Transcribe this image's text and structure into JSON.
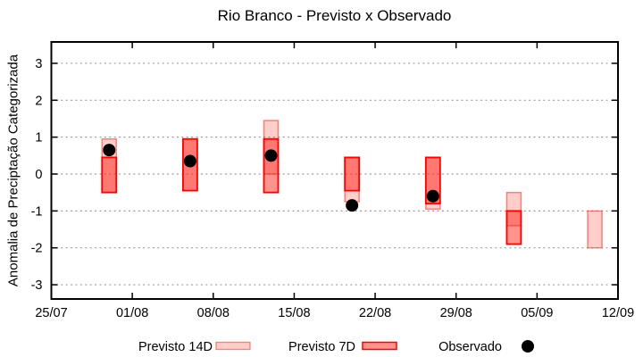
{
  "chart_data": {
    "type": "bar",
    "title": "Rio Branco - Previsto x Observado",
    "ylabel": "Anomalia de Preciptação Categorizada",
    "xlabel": "",
    "ylim": [
      -3.4,
      3.6
    ],
    "yticks": [
      3,
      2,
      1,
      0,
      -1,
      -2,
      -3
    ],
    "grid": "horizontal-dotted",
    "x_axis_days_range": [
      0,
      49
    ],
    "xticks": [
      {
        "day": 0,
        "label": "25/07"
      },
      {
        "day": 7,
        "label": "01/08"
      },
      {
        "day": 14,
        "label": "08/08"
      },
      {
        "day": 21,
        "label": "15/08"
      },
      {
        "day": 28,
        "label": "22/08"
      },
      {
        "day": 35,
        "label": "29/08"
      },
      {
        "day": 42,
        "label": "05/09"
      },
      {
        "day": 49,
        "label": "12/09"
      }
    ],
    "series": [
      {
        "name": "Previsto 14D",
        "type": "range-bar"
      },
      {
        "name": "Previsto 7D",
        "type": "range-bar"
      },
      {
        "name": "Observado",
        "type": "point"
      }
    ],
    "points": [
      {
        "date": "30/07",
        "day": 5,
        "previsto14d": [
          -0.5,
          0.95
        ],
        "previsto7d": [
          -0.5,
          0.45
        ],
        "observado": 0.65
      },
      {
        "date": "06/08",
        "day": 12,
        "previsto14d": [
          -0.45,
          0.95
        ],
        "previsto7d": [
          -0.45,
          0.95
        ],
        "observado": 0.35
      },
      {
        "date": "13/08",
        "day": 19,
        "previsto14d": [
          0.0,
          1.45
        ],
        "previsto7d": [
          -0.5,
          0.95
        ],
        "observado": 0.5
      },
      {
        "date": "20/08",
        "day": 26,
        "previsto14d": [
          -0.75,
          0.45
        ],
        "previsto7d": [
          -0.45,
          0.45
        ],
        "observado": -0.85
      },
      {
        "date": "27/08",
        "day": 33,
        "previsto14d": [
          -0.95,
          0.45
        ],
        "previsto7d": [
          -0.8,
          0.45
        ],
        "observado": -0.6
      },
      {
        "date": "03/09",
        "day": 40,
        "previsto14d": [
          -1.4,
          -0.5
        ],
        "previsto7d": [
          -1.9,
          -1.0
        ],
        "observado": null
      },
      {
        "date": "10/09",
        "day": 47,
        "previsto14d": [
          -2.0,
          -1.0
        ],
        "previsto7d": null,
        "observado": null
      }
    ],
    "colors": {
      "p14_fill": "rgba(255,45,35,0.24)",
      "p14_stroke": "rgba(235,60,50,0.58)",
      "p7_fill": "rgba(255,25,15,0.47)",
      "p7_stroke": "#ff0000",
      "obs": "#000000",
      "grid": "#9c9c9c"
    },
    "legend": {
      "position": "bottom",
      "items": [
        "Previsto 14D",
        "Previsto 7D",
        "Observado"
      ]
    }
  }
}
